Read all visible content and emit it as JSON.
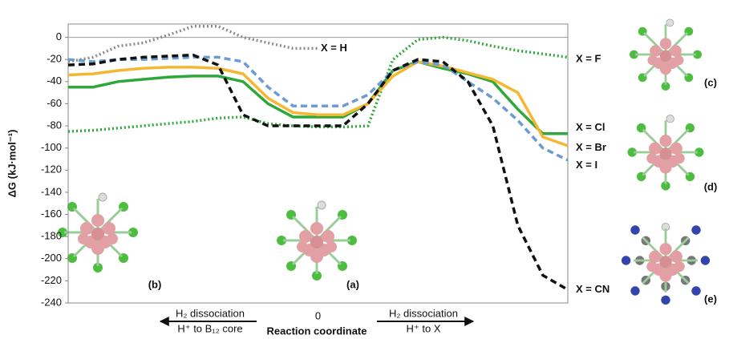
{
  "chart_data": {
    "type": "line",
    "y_label": "ΔG (kJ·mol⁻¹)",
    "x_label": "Reaction coordinate",
    "xlim": [
      -1,
      1
    ],
    "xticks": [
      0
    ],
    "ylim": [
      -240,
      12
    ],
    "yticks": [
      0,
      -20,
      -40,
      -60,
      -80,
      -100,
      -120,
      -140,
      -160,
      -180,
      -200,
      -220,
      -240
    ],
    "x": [
      -1,
      -0.9,
      -0.8,
      -0.7,
      -0.6,
      -0.5,
      -0.4,
      -0.3,
      -0.2,
      -0.1,
      0,
      0.1,
      0.2,
      0.3,
      0.4,
      0.5,
      0.6,
      0.7,
      0.8,
      0.9,
      1
    ],
    "series": [
      {
        "name": "X = H",
        "color": "#8c8c8c",
        "style": "dotted",
        "values": [
          -22,
          -18,
          -8,
          -5,
          2,
          10,
          10,
          0,
          -5,
          -10,
          -10,
          null,
          null,
          null,
          null,
          null,
          null,
          null,
          null,
          null,
          null
        ]
      },
      {
        "name": "X = F",
        "color": "#2ea83a",
        "style": "dotted",
        "values": [
          -85,
          -84,
          -82,
          -80,
          -78,
          -76,
          -73,
          -72,
          -78,
          -80,
          -81,
          -81,
          -80,
          -20,
          -2,
          0,
          -3,
          -8,
          -12,
          -15,
          -18
        ]
      },
      {
        "name": "X = Cl",
        "color": "#2ea83a",
        "style": "solid",
        "values": [
          -45,
          -45,
          -40,
          -38,
          -36,
          -35,
          -35,
          -40,
          -60,
          -72,
          -72,
          -72,
          -60,
          -30,
          -22,
          -28,
          -33,
          -40,
          -65,
          -87,
          -87
        ]
      },
      {
        "name": "X = Br",
        "color": "#f5b731",
        "style": "solid",
        "values": [
          -34,
          -33,
          -30,
          -28,
          -27,
          -27,
          -28,
          -33,
          -55,
          -68,
          -70,
          -70,
          -60,
          -35,
          -22,
          -26,
          -32,
          -38,
          -50,
          -90,
          -98
        ]
      },
      {
        "name": "X = I",
        "color": "#6a9bd1",
        "style": "dashed",
        "values": [
          -20,
          -22,
          -20,
          -20,
          -19,
          -18,
          -18,
          -22,
          -45,
          -62,
          -62,
          -62,
          -52,
          -30,
          -22,
          -25,
          -40,
          -55,
          -75,
          -100,
          -111
        ]
      },
      {
        "name": "X = CN",
        "color": "#111111",
        "style": "dashed",
        "values": [
          -25,
          -24,
          -20,
          -18,
          -17,
          -16,
          -25,
          -70,
          -80,
          -80,
          -80,
          -80,
          -60,
          -30,
          -20,
          -22,
          -40,
          -80,
          -170,
          -215,
          -228
        ]
      }
    ],
    "left_arrow": [
      "H₂ dissociation",
      "H⁺ to B₁₂ core"
    ],
    "right_arrow": [
      "H₂ dissociation",
      "H⁺ to X"
    ],
    "panels": [
      "(a)",
      "(b)",
      "(c)",
      "(d)",
      "(e)"
    ]
  }
}
